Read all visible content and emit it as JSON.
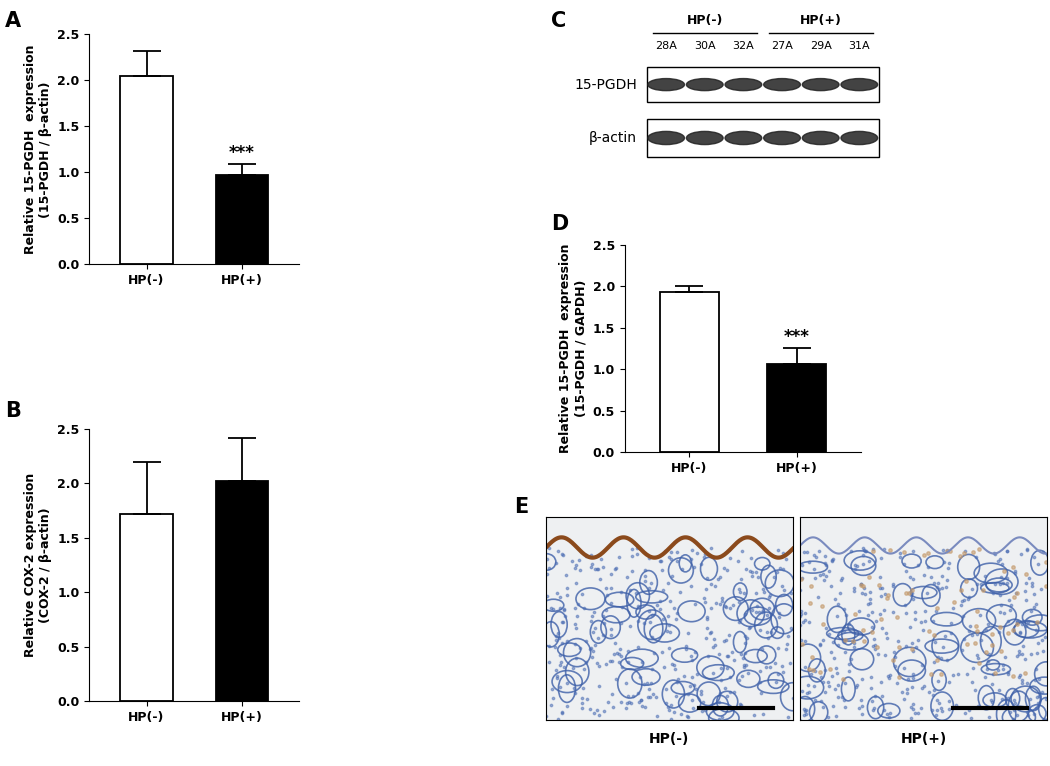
{
  "chart_data": [
    {
      "type": "bar",
      "panel_label": "A",
      "categories": [
        "HP(-)",
        "HP(+)"
      ],
      "values": [
        2.05,
        0.97
      ],
      "errors": [
        0.27,
        0.12
      ],
      "colors": [
        "#ffffff",
        "#000000"
      ],
      "y_label": "Relative 15-PGDH  expression\n(15-PGDH / β-actin)",
      "ylim": [
        0,
        2.5
      ],
      "yticks": [
        {
          "value": 0,
          "label": "0.0"
        },
        {
          "value": 0.5,
          "label": "0.5"
        },
        {
          "value": 1,
          "label": "1.0"
        },
        {
          "value": 1.5,
          "label": "1.5"
        },
        {
          "value": 2,
          "label": "2.0"
        },
        {
          "value": 2.5,
          "label": "2.5"
        }
      ],
      "annotations": [
        {
          "category": "HP(+)",
          "text": "***"
        }
      ]
    },
    {
      "type": "bar",
      "panel_label": "B",
      "categories": [
        "HP(-)",
        "HP(+)"
      ],
      "values": [
        1.72,
        2.02
      ],
      "errors": [
        0.48,
        0.4
      ],
      "colors": [
        "#ffffff",
        "#000000"
      ],
      "y_label": "Relative COX-2 expression\n(COX-2 / β-actin)",
      "ylim": [
        0,
        2.5
      ],
      "yticks": [
        {
          "value": 0,
          "label": "0.0"
        },
        {
          "value": 0.5,
          "label": "0.5"
        },
        {
          "value": 1,
          "label": "1.0"
        },
        {
          "value": 1.5,
          "label": "1.5"
        },
        {
          "value": 2,
          "label": "2.0"
        },
        {
          "value": 2.5,
          "label": "2.5"
        }
      ],
      "annotations": []
    },
    {
      "type": "bar",
      "panel_label": "D",
      "categories": [
        "HP(-)",
        "HP(+)"
      ],
      "values": [
        1.93,
        1.06
      ],
      "errors": [
        0.08,
        0.2
      ],
      "colors": [
        "#ffffff",
        "#000000"
      ],
      "y_label": "Relative 15-PGDH  expression\n(15-PGDH / GAPDH)",
      "ylim": [
        0,
        2.5
      ],
      "yticks": [
        {
          "value": 0,
          "label": "0.0"
        },
        {
          "value": 0.5,
          "label": "0.5"
        },
        {
          "value": 1,
          "label": "1.0"
        },
        {
          "value": 1.5,
          "label": "1.5"
        },
        {
          "value": 2,
          "label": "2.0"
        },
        {
          "value": 2.5,
          "label": "2.5"
        }
      ],
      "annotations": [
        {
          "category": "HP(+)",
          "text": "***"
        }
      ]
    }
  ],
  "blot": {
    "panel_label": "C",
    "groups": [
      {
        "label": "HP(-)",
        "lanes": [
          "28A",
          "30A",
          "32A"
        ]
      },
      {
        "label": "HP(+)",
        "lanes": [
          "27A",
          "29A",
          "31A"
        ]
      }
    ],
    "rows": [
      "15-PGDH",
      "β-actin"
    ]
  },
  "histology": {
    "panel_label": "E",
    "images": [
      "HP(-)",
      "HP(+)"
    ]
  }
}
